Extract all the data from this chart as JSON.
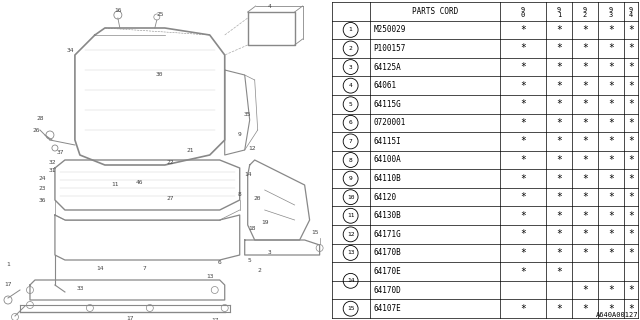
{
  "title": "A640A00127",
  "parts": [
    {
      "num": 1,
      "code": "M250029",
      "cols": [
        true,
        true,
        true,
        true,
        true
      ]
    },
    {
      "num": 2,
      "code": "P100157",
      "cols": [
        true,
        true,
        true,
        true,
        true
      ]
    },
    {
      "num": 3,
      "code": "64125A",
      "cols": [
        true,
        true,
        true,
        true,
        true
      ]
    },
    {
      "num": 4,
      "code": "64061",
      "cols": [
        true,
        true,
        true,
        true,
        true
      ]
    },
    {
      "num": 5,
      "code": "64115G",
      "cols": [
        true,
        true,
        true,
        true,
        true
      ]
    },
    {
      "num": 6,
      "code": "0720001",
      "cols": [
        true,
        true,
        true,
        true,
        true
      ]
    },
    {
      "num": 7,
      "code": "64115I",
      "cols": [
        true,
        true,
        true,
        true,
        true
      ]
    },
    {
      "num": 8,
      "code": "64100A",
      "cols": [
        true,
        true,
        true,
        true,
        true
      ]
    },
    {
      "num": 9,
      "code": "64110B",
      "cols": [
        true,
        true,
        true,
        true,
        true
      ]
    },
    {
      "num": 10,
      "code": "64120",
      "cols": [
        true,
        true,
        true,
        true,
        true
      ]
    },
    {
      "num": 11,
      "code": "64130B",
      "cols": [
        true,
        true,
        true,
        true,
        true
      ]
    },
    {
      "num": 12,
      "code": "64171G",
      "cols": [
        true,
        true,
        true,
        true,
        true
      ]
    },
    {
      "num": 13,
      "code": "64170B",
      "cols": [
        true,
        true,
        true,
        true,
        true
      ]
    },
    {
      "num": 14,
      "code": "64170E",
      "cols": [
        true,
        true,
        false,
        false,
        false
      ]
    },
    {
      "num": 14,
      "code": "64170D",
      "cols": [
        false,
        false,
        true,
        true,
        true
      ]
    },
    {
      "num": 15,
      "code": "64107E",
      "cols": [
        true,
        true,
        true,
        true,
        true
      ]
    }
  ],
  "col_headers": [
    "9\n0",
    "9\n1",
    "9\n2",
    "9\n3",
    "9\n4"
  ],
  "bg_color": "#ffffff",
  "lc": "#888888",
  "tc": "#444444"
}
